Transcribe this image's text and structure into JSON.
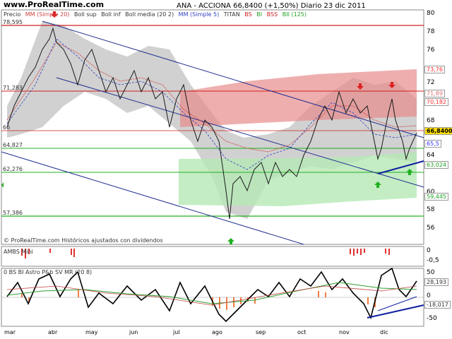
{
  "header": {
    "site": "www.ProRealTime.com",
    "title": "ANA - ACCIONA   66,8400 (+1,50%)   Diario  23 dic 2011"
  },
  "legend": {
    "price": "Precio",
    "mm": "MM (Simple 20)",
    "bollsup": "Boll sup",
    "bollinf": "Boll inf",
    "bollmed": "Boll media (20 2)",
    "mm5": "MM (Simple 5)",
    "titan": "TITAN",
    "bs": "BS",
    "bi": "BI",
    "bss": "BSS",
    "bii": "BII (125)"
  },
  "levels": {
    "l1": "78,595",
    "l2": "71,283",
    "l3": "66",
    "l4": "64,827",
    "l5": "62,276",
    "l6": "57,386"
  },
  "axis": {
    "ticks": [
      "80",
      "78",
      "76",
      "74",
      "72",
      "70",
      "68",
      "66",
      "64",
      "62",
      "60",
      "58",
      "56"
    ]
  },
  "tags": {
    "t1": {
      "text": "73,76",
      "color": "#ff3030"
    },
    "t2": {
      "text": "71,89",
      "color": "#e07070"
    },
    "t3": {
      "text": "70,182",
      "color": "#ff3030"
    },
    "t4": {
      "text": "66,8400",
      "color": "#000000"
    },
    "t5": {
      "text": "65,5",
      "color": "#3030ff"
    },
    "t6": {
      "text": "63,024",
      "color": "#20a020"
    },
    "t7": {
      "text": "59,445",
      "color": "#20a020"
    }
  },
  "copyright": "© ProRealTime.com Históricos ajustados con dividendos",
  "panel2": {
    "label": "AMBS Mini",
    "axis0": "0",
    "axis1": "-0,5"
  },
  "panel3": {
    "label": "0 BS BI Astro P&b SV MR (20 8)",
    "axis0": "50",
    "axis1": "0",
    "axis2": "-50",
    "tag1": "28,193",
    "tag2": "-18,017"
  },
  "months": [
    "mar",
    "abr",
    "may",
    "jun",
    "jul",
    "ago",
    "sep",
    "oct",
    "nov",
    "dic"
  ]
}
